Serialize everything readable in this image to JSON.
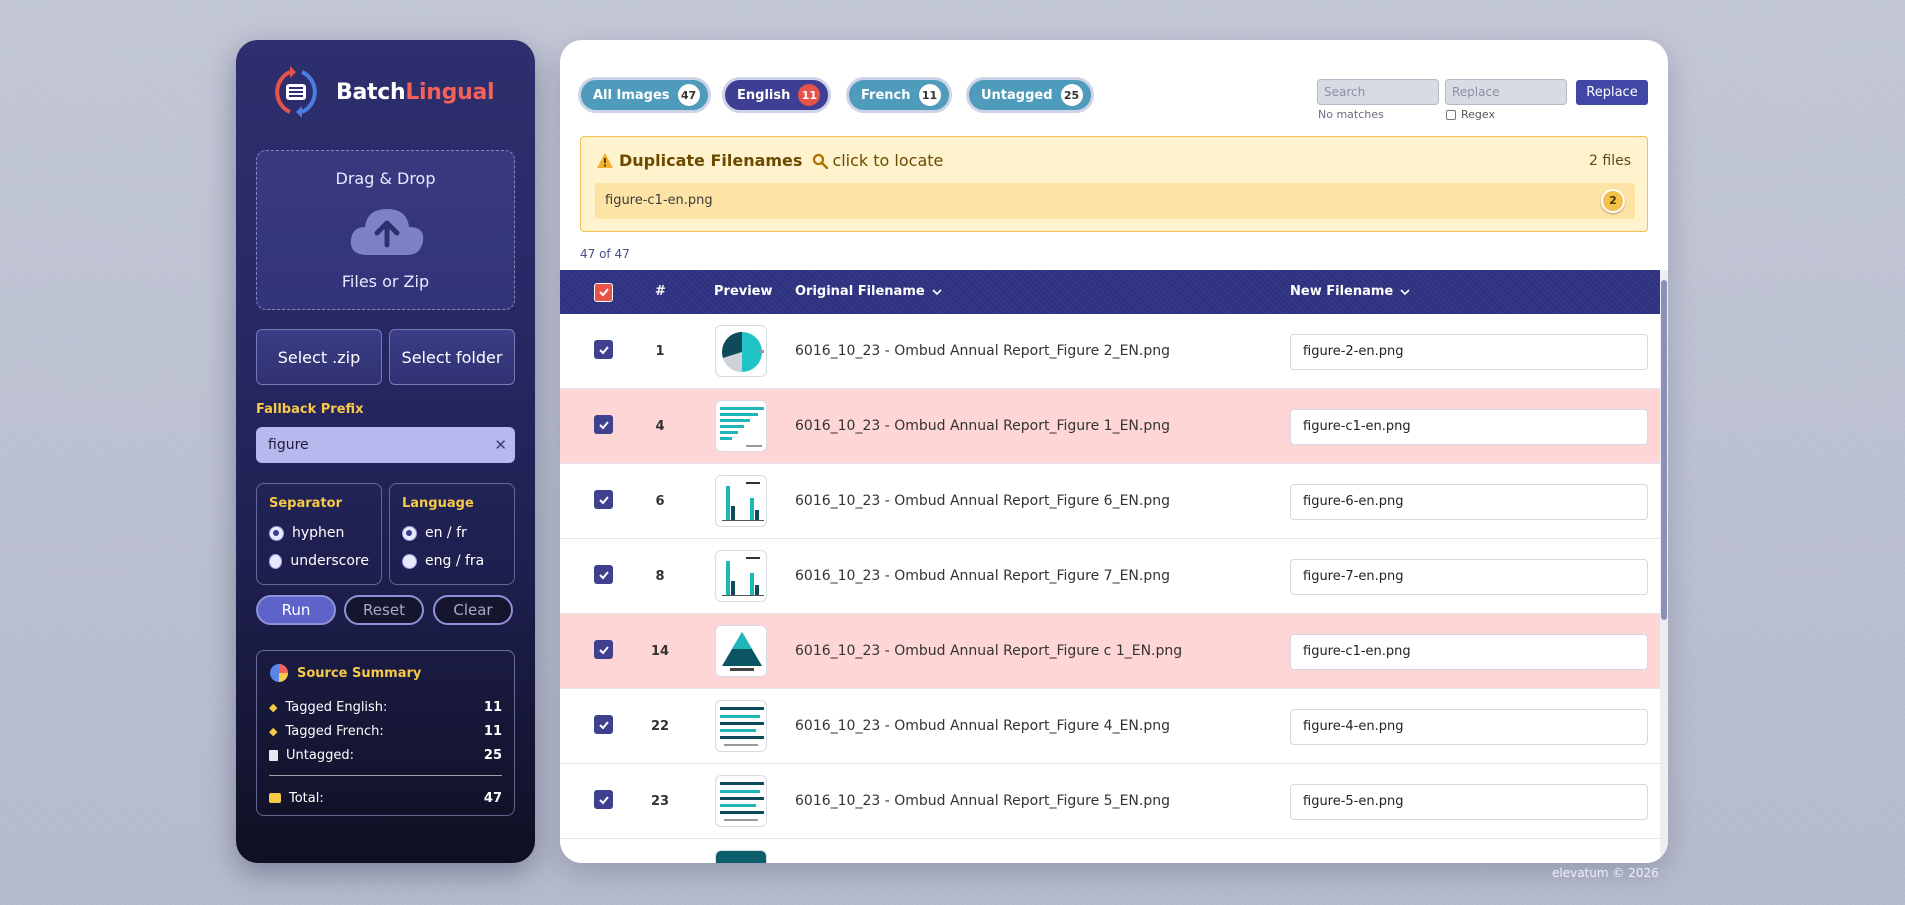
{
  "app": {
    "brand_prefix": "Batch",
    "brand_accent": "Lingual"
  },
  "dropzone": {
    "line1": "Drag & Drop",
    "line2": "Files or Zip"
  },
  "buttons": {
    "select_zip": "Select .zip",
    "select_folder": "Select folder",
    "run": "Run",
    "reset": "Reset",
    "clear": "Clear"
  },
  "fallback": {
    "label": "Fallback Prefix",
    "value": "figure"
  },
  "separator": {
    "label": "Separator",
    "options": [
      "hyphen",
      "underscore"
    ],
    "selected": "hyphen"
  },
  "language": {
    "label": "Language",
    "options": [
      "en / fr",
      "eng / fra"
    ],
    "selected": "en / fr"
  },
  "summary": {
    "title": "Source Summary",
    "rows": [
      {
        "label": "Tagged English:",
        "value": "11",
        "icon": "tag-icon"
      },
      {
        "label": "Tagged French:",
        "value": "11",
        "icon": "tag-icon"
      },
      {
        "label": "Untagged:",
        "value": "25",
        "icon": "file-icon"
      }
    ],
    "total_label": "Total:",
    "total_value": "47"
  },
  "filters": [
    {
      "label": "All Images",
      "count": "47"
    },
    {
      "label": "English",
      "count": "11"
    },
    {
      "label": "French",
      "count": "11"
    },
    {
      "label": "Untagged",
      "count": "25"
    }
  ],
  "search": {
    "search_placeholder": "Search",
    "replace_placeholder": "Replace",
    "no_matches": "No matches",
    "regex_label": "Regex",
    "replace_button": "Replace"
  },
  "duplicates": {
    "title": "Duplicate Filenames",
    "locate": "click to locate",
    "files": "2 files",
    "filename": "figure-c1-en.png",
    "count": "2"
  },
  "count_line": "47 of 47",
  "table": {
    "headers": {
      "num": "#",
      "preview": "Preview",
      "original": "Original Filename",
      "new": "New Filename"
    },
    "rows": [
      {
        "num": "1",
        "original": "6016_10_23 - Ombud Annual Report_Figure 2_EN.png",
        "new": "figure-2-en.png",
        "duplicate": false,
        "thumb": "pie"
      },
      {
        "num": "4",
        "original": "6016_10_23 - Ombud Annual Report_Figure 1_EN.png",
        "new": "figure-c1-en.png",
        "duplicate": true,
        "thumb": "hbar"
      },
      {
        "num": "6",
        "original": "6016_10_23 - Ombud Annual Report_Figure 6_EN.png",
        "new": "figure-6-en.png",
        "duplicate": false,
        "thumb": "vbar"
      },
      {
        "num": "8",
        "original": "6016_10_23 - Ombud Annual Report_Figure 7_EN.png",
        "new": "figure-7-en.png",
        "duplicate": false,
        "thumb": "vbar"
      },
      {
        "num": "14",
        "original": "6016_10_23 - Ombud Annual Report_Figure c 1_EN.png",
        "new": "figure-c1-en.png",
        "duplicate": true,
        "thumb": "triangle"
      },
      {
        "num": "22",
        "original": "6016_10_23 - Ombud Annual Report_Figure 4_EN.png",
        "new": "figure-4-en.png",
        "duplicate": false,
        "thumb": "lines"
      },
      {
        "num": "23",
        "original": "6016_10_23 - Ombud Annual Report_Figure 5_EN.png",
        "new": "figure-5-en.png",
        "duplicate": false,
        "thumb": "lines"
      }
    ]
  },
  "footer": "elevatum © 2026",
  "colors": {
    "accent_red": "#e5534b",
    "indigo": "#3e3f93",
    "teal": "#4f9bbb",
    "warning_bg": "#fff3cd",
    "duplicate_row": "#ffd6d6"
  }
}
